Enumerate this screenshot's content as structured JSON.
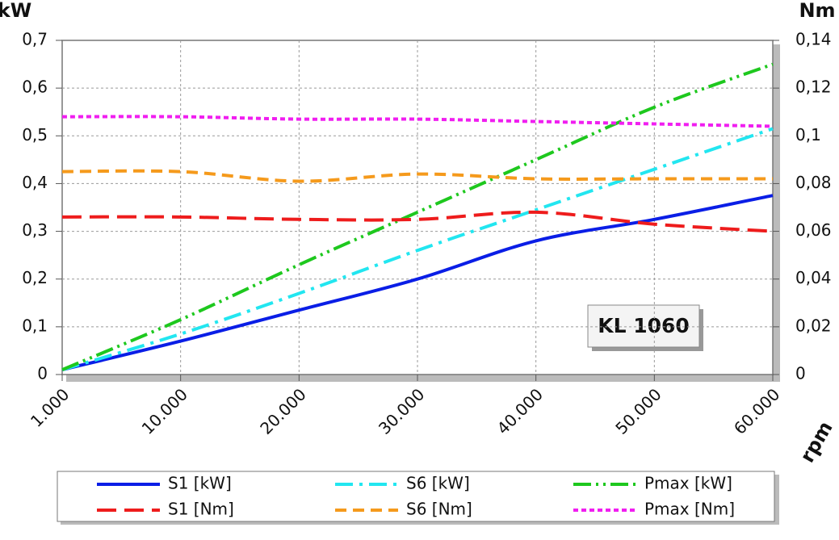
{
  "chart_data": {
    "type": "line",
    "y_label": "kW",
    "y2_label": "Nm",
    "x_label": "rpm",
    "annotation": "KL 1060",
    "categories": [
      "1.000",
      "10.000",
      "20.000",
      "30.000",
      "40.000",
      "50.000",
      "60.000"
    ],
    "ylim": [
      0,
      0.7
    ],
    "yticks": [
      0,
      {
        "value": 0.1,
        "label": "0,1"
      },
      {
        "value": 0.2,
        "label": "0,2"
      },
      {
        "value": 0.3,
        "label": "0,3"
      },
      {
        "value": 0.4,
        "label": "0,4"
      },
      {
        "value": 0.5,
        "label": "0,5"
      },
      {
        "value": 0.6,
        "label": "0,6"
      },
      {
        "value": 0.7,
        "label": "0,7"
      }
    ],
    "y2lim": [
      0,
      0.14
    ],
    "y2ticks": [
      0,
      {
        "value": 0.02,
        "label": "0,02"
      },
      {
        "value": 0.04,
        "label": "0,04"
      },
      {
        "value": 0.06,
        "label": "0,06"
      },
      {
        "value": 0.08,
        "label": "0,08"
      },
      {
        "value": 0.1,
        "label": "0,1"
      },
      {
        "value": 0.12,
        "label": "0,12"
      },
      {
        "value": 0.14,
        "label": "0,14"
      }
    ],
    "grid": true,
    "series": [
      {
        "name": "S1 [kW]",
        "color": "#0a1ee6",
        "values": [
          0.01,
          0.07,
          0.135,
          0.2,
          0.28,
          0.325,
          0.375
        ]
      },
      {
        "name": "S6 [kW]",
        "color": "#22e6f0",
        "values": [
          0.01,
          0.085,
          0.17,
          0.26,
          0.345,
          0.43,
          0.515
        ]
      },
      {
        "name": "Pmax [kW]",
        "color": "#1ec81e",
        "values": [
          0.01,
          0.115,
          0.23,
          0.34,
          0.45,
          0.56,
          0.65
        ]
      },
      {
        "name": "S1 [Nm]",
        "color": "#ee1c1c",
        "axis": "y2",
        "values": [
          0.066,
          0.066,
          0.065,
          0.065,
          0.068,
          0.063,
          0.06
        ]
      },
      {
        "name": "S6 [Nm]",
        "color": "#f59a1c",
        "axis": "y2",
        "values": [
          0.085,
          0.085,
          0.081,
          0.084,
          0.082,
          0.082,
          0.082
        ]
      },
      {
        "name": "Pmax [Nm]",
        "color": "#f01ef0",
        "axis": "y2",
        "values": [
          0.108,
          0.108,
          0.107,
          0.107,
          0.106,
          0.105,
          0.104
        ]
      }
    ]
  }
}
